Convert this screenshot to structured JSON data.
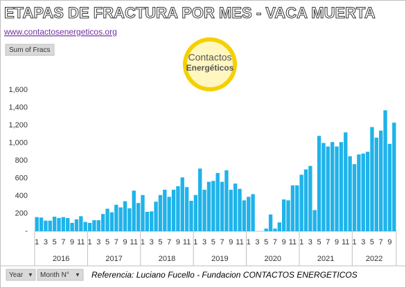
{
  "chart_data": {
    "type": "bar",
    "title": "ETAPAS DE FRACTURA POR MES -  VACA MUERTA",
    "url": "www.contactosenergeticos.org",
    "value_field": "Sum of Fracs",
    "logo": [
      "Contactos",
      "Energéticos"
    ],
    "filters": [
      "Year",
      "Month N°"
    ],
    "source": "Referencia: Luciano Fucello - Fundacion CONTACTOS ENERGETICOS",
    "color": "#1fb3ea",
    "grid": false,
    "ylim": [
      0,
      1600
    ],
    "yticks": [
      {
        "value": 0,
        "label": "-"
      },
      200,
      400,
      600,
      800,
      {
        "value": 1000,
        "label": "1,000"
      },
      {
        "value": 1200,
        "label": "1,200"
      },
      {
        "value": 1400,
        "label": "1,400"
      },
      {
        "value": 1600,
        "label": "1,600"
      }
    ],
    "groups": [
      {
        "label": "2016",
        "categories": [
          1,
          null,
          3,
          null,
          5,
          null,
          7,
          null,
          9,
          null,
          11,
          null
        ],
        "values": [
          160,
          155,
          120,
          120,
          165,
          150,
          160,
          150,
          95,
          135,
          170,
          105
        ]
      },
      {
        "label": "2017",
        "categories": [
          1,
          null,
          3,
          null,
          5,
          null,
          7,
          null,
          9,
          null,
          11,
          null
        ],
        "values": [
          95,
          125,
          125,
          195,
          255,
          215,
          300,
          270,
          340,
          260,
          460,
          320
        ]
      },
      {
        "label": "2018",
        "categories": [
          1,
          null,
          3,
          null,
          5,
          null,
          7,
          null,
          9,
          null,
          11,
          null
        ],
        "values": [
          410,
          220,
          225,
          335,
          410,
          470,
          390,
          470,
          510,
          610,
          500,
          345
        ]
      },
      {
        "label": "2019",
        "categories": [
          1,
          null,
          3,
          null,
          5,
          null,
          7,
          null,
          9,
          null,
          11,
          null
        ],
        "values": [
          410,
          710,
          470,
          560,
          570,
          660,
          560,
          690,
          470,
          540,
          480,
          350
        ]
      },
      {
        "label": "2020",
        "categories": [
          1,
          null,
          3,
          null,
          5,
          null,
          7,
          null,
          9,
          null,
          11,
          null
        ],
        "values": [
          390,
          420,
          0,
          0,
          30,
          190,
          30,
          100,
          360,
          350,
          520,
          520
        ]
      },
      {
        "label": "2021",
        "categories": [
          1,
          null,
          3,
          null,
          5,
          null,
          7,
          null,
          9,
          null,
          11,
          null
        ],
        "values": [
          640,
          700,
          740,
          240,
          1080,
          1000,
          960,
          1010,
          960,
          1010,
          1120,
          850
        ]
      },
      {
        "label": "2022",
        "categories": [
          1,
          null,
          3,
          null,
          5,
          null,
          7,
          null,
          9,
          null
        ],
        "values": [
          760,
          870,
          880,
          900,
          1180,
          1060,
          1140,
          1370,
          990,
          1230
        ]
      }
    ]
  }
}
